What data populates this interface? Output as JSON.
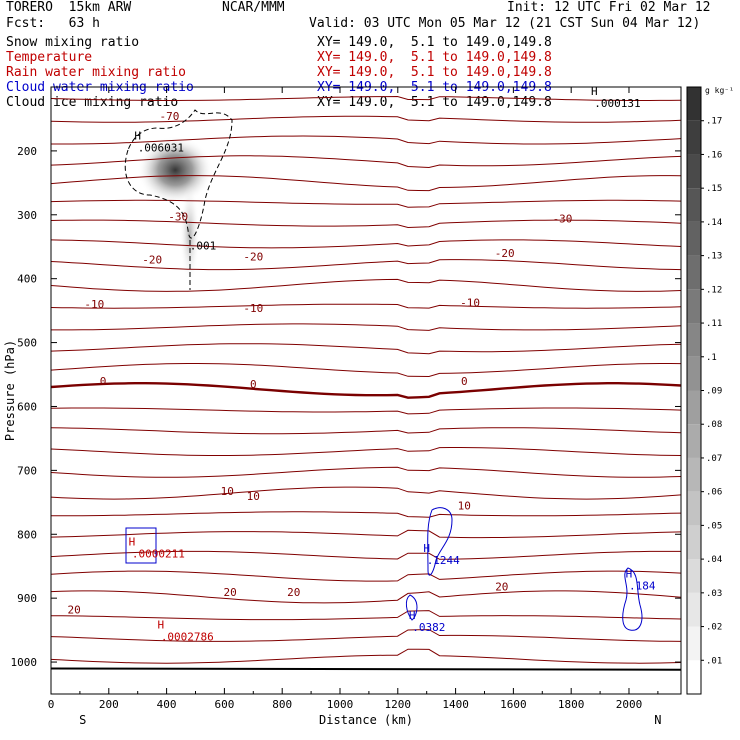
{
  "header": {
    "model": "TORERO  15km ARW",
    "center": "NCAR/MMM",
    "init": "Init: 12 UTC Fri 02 Mar 12",
    "fcst": "Fcst:   63 h",
    "valid": "Valid: 03 UTC Mon 05 Mar 12 (21 CST Sun 04 Mar 12)"
  },
  "fields": [
    {
      "name": "Snow mixing ratio",
      "xy": "XY= 149.0,  5.1 to 149.0,149.8",
      "color": "#000000"
    },
    {
      "name": "Temperature",
      "xy": "XY= 149.0,  5.1 to 149.0,149.8",
      "color": "#c00000"
    },
    {
      "name": "Rain water mixing ratio",
      "xy": "XY= 149.0,  5.1 to 149.0,149.8",
      "color": "#c00000"
    },
    {
      "name": "Cloud water mixing ratio",
      "xy": "XY= 149.0,  5.1 to 149.0,149.8",
      "color": "#0000cc"
    },
    {
      "name": "Cloud ice mixing ratio",
      "xy": "XY= 149.0,  5.1 to 149.0,149.8",
      "color": "#000000"
    }
  ],
  "chart_data": {
    "type": "heatmap",
    "xlabel": "Distance (km)",
    "ylabel": "Pressure (hPa)",
    "xlim": [
      0,
      2180
    ],
    "ylim": [
      1050,
      100
    ],
    "x_ticks": [
      "0",
      "200",
      "400",
      "600",
      "800",
      "1000",
      "1200",
      "1400",
      "1600",
      "1800",
      "2000"
    ],
    "y_ticks": [
      "200",
      "300",
      "400",
      "500",
      "600",
      "700",
      "800",
      "900",
      "1000"
    ],
    "x_end_labels": {
      "left": "S",
      "right": "N"
    },
    "colorbar": {
      "unit": "g kg⁻¹",
      "ticks": [
        ".01",
        ".02",
        ".03",
        ".04",
        ".05",
        ".06",
        ".07",
        ".08",
        ".09",
        ".1",
        ".11",
        ".12",
        ".13",
        ".14",
        ".15",
        ".16",
        ".17"
      ]
    },
    "temperature_labels": [
      {
        "text": "-70",
        "x": 410,
        "p": 145
      },
      {
        "text": "-30",
        "x": 440,
        "p": 303
      },
      {
        "text": "-30",
        "x": 1770,
        "p": 306
      },
      {
        "text": "-20",
        "x": 350,
        "p": 370
      },
      {
        "text": "-20",
        "x": 700,
        "p": 365
      },
      {
        "text": "-20",
        "x": 1570,
        "p": 360
      },
      {
        "text": "-10",
        "x": 150,
        "p": 440
      },
      {
        "text": "-10",
        "x": 700,
        "p": 446
      },
      {
        "text": "-10",
        "x": 1450,
        "p": 437
      },
      {
        "text": "0",
        "x": 180,
        "p": 560
      },
      {
        "text": "0",
        "x": 700,
        "p": 565
      },
      {
        "text": "0",
        "x": 1430,
        "p": 560
      },
      {
        "text": "10",
        "x": 610,
        "p": 732
      },
      {
        "text": "10",
        "x": 700,
        "p": 740
      },
      {
        "text": "10",
        "x": 1430,
        "p": 755
      },
      {
        "text": "20",
        "x": 80,
        "p": 918
      },
      {
        "text": "20",
        "x": 620,
        "p": 890
      },
      {
        "text": "20",
        "x": 840,
        "p": 890
      },
      {
        "text": "20",
        "x": 1560,
        "p": 882
      }
    ],
    "maxima": [
      {
        "symbol": "H",
        "value": ".006031",
        "x": 300,
        "p": 195,
        "color": "#000000"
      },
      {
        "symbol": "H",
        "value": ".000131",
        "x": 1880,
        "p": 125,
        "color": "#000000"
      },
      {
        "symbol": "",
        "value": ".001",
        "x": 480,
        "p": 348,
        "color": "#000000"
      },
      {
        "symbol": "H",
        "value": ".0000211",
        "x": 280,
        "p": 830,
        "color": "#c00000"
      },
      {
        "symbol": "H",
        "value": ".0002786",
        "x": 380,
        "p": 960,
        "color": "#c00000"
      },
      {
        "symbol": "H",
        "value": ".1244",
        "x": 1300,
        "p": 840,
        "color": "#0000cc"
      },
      {
        "symbol": "H",
        "value": ".0382",
        "x": 1250,
        "p": 945,
        "color": "#0000cc"
      },
      {
        "symbol": "H",
        "value": ".184",
        "x": 2000,
        "p": 880,
        "color": "#0000cc"
      }
    ]
  }
}
